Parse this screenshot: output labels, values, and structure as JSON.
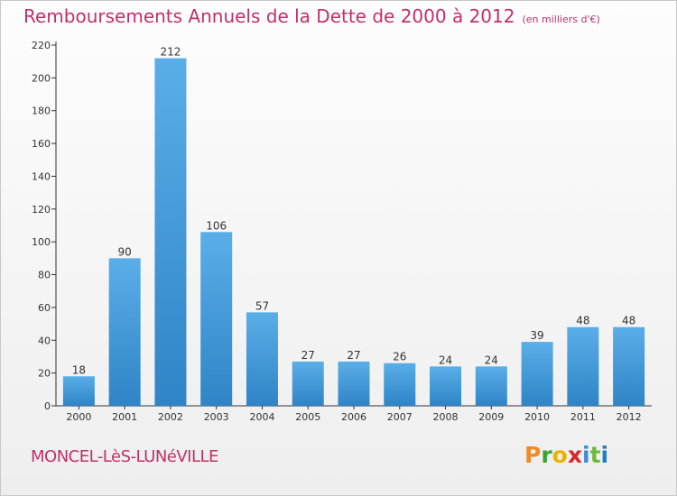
{
  "chart_data": {
    "type": "bar",
    "title": "Remboursements Annuels de la Dette de 2000 à 2012",
    "subtitle": "(en milliers d'€)",
    "categories": [
      "2000",
      "2001",
      "2002",
      "2003",
      "2004",
      "2005",
      "2006",
      "2007",
      "2008",
      "2009",
      "2010",
      "2011",
      "2012"
    ],
    "values": [
      18,
      90,
      212,
      106,
      57,
      27,
      27,
      26,
      24,
      24,
      39,
      48,
      48
    ],
    "ylim": [
      0,
      220
    ],
    "yticks": [
      0,
      20,
      40,
      60,
      80,
      100,
      120,
      140,
      160,
      180,
      200,
      220
    ],
    "xlabel": "",
    "ylabel": "",
    "grid": false,
    "bar_color": "#4a9edb",
    "bar_color_dark": "#2b7fc0"
  },
  "footer": {
    "commune": "MONCEL-LèS-LUNéVILLE",
    "brand_letters": [
      "P",
      "r",
      "o",
      "x",
      "i",
      "t",
      "i"
    ],
    "brand_colors": [
      "#f08a24",
      "#3aa335",
      "#e8b400",
      "#d9262c",
      "#3a8fd0",
      "#6fb83a",
      "#1f7fc4"
    ]
  },
  "colors": {
    "title": "#c0306a",
    "axis": "#333333"
  }
}
